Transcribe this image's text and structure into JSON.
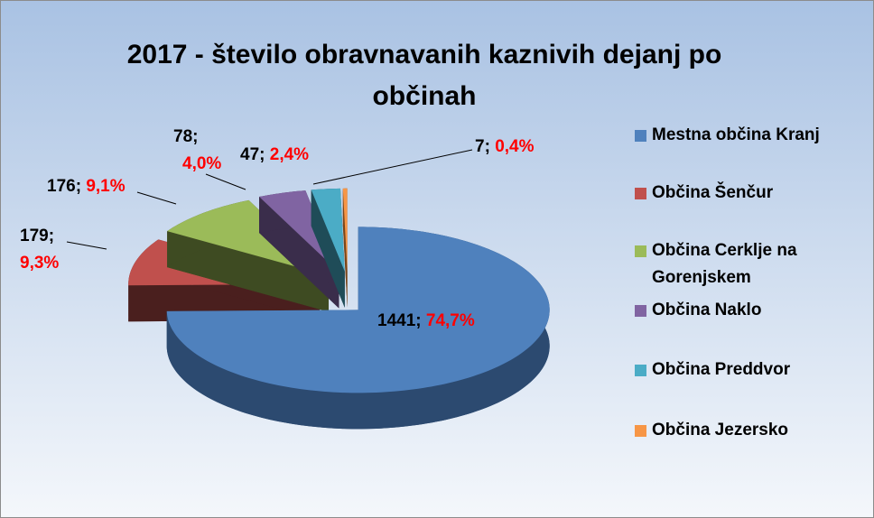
{
  "chart_data": {
    "type": "pie",
    "title": "2017 - število obravnavanih kaznivih dejanj po občinah",
    "categories": [
      "Mestna občina Kranj",
      "Občina Šenčur",
      "Občina Cerklje na Gorenjskem",
      "Občina Naklo",
      "Občina Preddvor",
      "Občina Jezersko"
    ],
    "values": [
      1441,
      179,
      176,
      78,
      47,
      7
    ],
    "percent_labels": [
      "74,7%",
      "9,3%",
      "9,1%",
      "4,0%",
      "2,4%",
      "0,4%"
    ],
    "label_separator": "; ",
    "colors": [
      "#4f81bd",
      "#c0504d",
      "#9bbb59",
      "#8064a2",
      "#4bacc6",
      "#f79646"
    ],
    "dark_colors": [
      "#2c4a70",
      "#4a1f1e",
      "#3e4b22",
      "#3a2d4b",
      "#1f4c58",
      "#7a4519"
    ],
    "legend": "right"
  }
}
